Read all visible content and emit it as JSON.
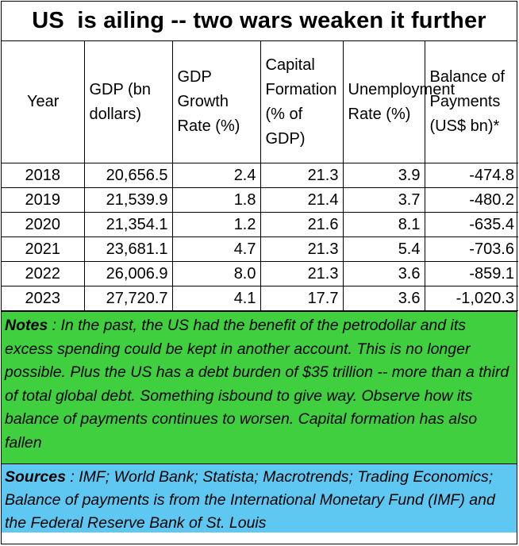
{
  "title": "US  is ailing -- two wars weaken it further",
  "headers": {
    "year": "Year",
    "gdp": "GDP (bn dollars)",
    "growth": "GDP Growth Rate (%)",
    "capital": "Capital Formation (% of GDP)",
    "unemployment": "Unemployment Rate (%)",
    "bop": "Balance of Payments (US$ bn)*"
  },
  "rows": [
    {
      "year": "2018",
      "gdp": "20,656.5",
      "growth": "2.4",
      "capital": "21.3",
      "unemployment": "3.9",
      "bop": "-474.8"
    },
    {
      "year": "2019",
      "gdp": "21,539.9",
      "growth": "1.8",
      "capital": "21.4",
      "unemployment": "3.7",
      "bop": "-480.2"
    },
    {
      "year": "2020",
      "gdp": "21,354.1",
      "growth": "1.2",
      "capital": "21.6",
      "unemployment": "8.1",
      "bop": "-635.4"
    },
    {
      "year": "2021",
      "gdp": "23,681.1",
      "growth": "4.7",
      "capital": "21.3",
      "unemployment": "5.4",
      "bop": "-703.6"
    },
    {
      "year": "2022",
      "gdp": "26,006.9",
      "growth": "8.0",
      "capital": "21.3",
      "unemployment": "3.6",
      "bop": "-859.1"
    },
    {
      "year": "2023",
      "gdp": "27,720.7",
      "growth": "4.1",
      "capital": "17.7",
      "unemployment": "3.6",
      "bop": "-1,020.3"
    }
  ],
  "notes": {
    "label": "Notes",
    "text": " :  In the past, the US had the benefit of the petrodollar and its excess spending could be kept in another account.  This is no longer possible.  Plus the US has a debt burden of $35 trillion -- more than a third of total global debt. Something isbound to give way. Observe how its balance of payments continues to worsen.  Capital formation has also fallen",
    "bg_color": "#3fcf3f"
  },
  "sources": {
    "label": "Sources",
    "text": " : IMF; World Bank; Statista; Macrotrends; Trading Economics; Balance of payments is from the International Monetary Fund (IMF) and the Federal Reserve Bank of St. Louis",
    "bg_color": "#5fc8f2"
  }
}
